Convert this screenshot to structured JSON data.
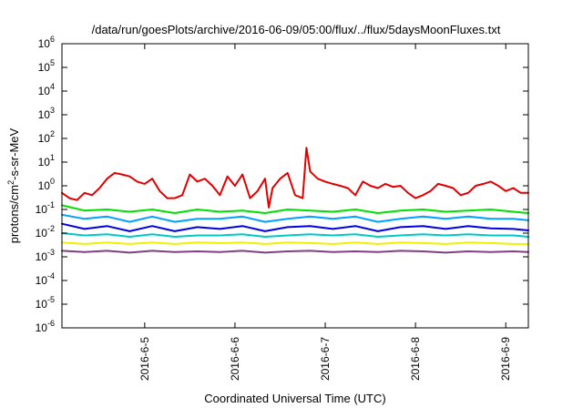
{
  "chart_data": {
    "type": "line",
    "title": "/data/run/goesPlots/archive/2016-06-09/05:00/flux/../flux/5daysMoonFluxes.txt",
    "xlabel": "Coordinated Universal Time (UTC)",
    "ylabel": "protons/cm²-s-sr-MeV",
    "ylabel_parts": {
      "pre": "protons/cm",
      "sup": "2",
      "post": "-s-sr-MeV"
    },
    "yscale": "log",
    "ylim": [
      1e-06,
      1000000.0
    ],
    "xlim": [
      "2016-06-04T02:00",
      "2016-06-09T06:00"
    ],
    "grid": false,
    "x_ticks": [
      {
        "date": "2016-06-05T00:00",
        "label": "2016-6-5"
      },
      {
        "date": "2016-06-06T00:00",
        "label": "2016-6-6"
      },
      {
        "date": "2016-06-07T00:00",
        "label": "2016-6-7"
      },
      {
        "date": "2016-06-08T00:00",
        "label": "2016-6-8"
      },
      {
        "date": "2016-06-09T00:00",
        "label": "2016-6-9"
      }
    ],
    "y_ticks": [
      {
        "value": 1e-06,
        "base": "10",
        "exp": "-6"
      },
      {
        "value": 1e-05,
        "base": "10",
        "exp": "-5"
      },
      {
        "value": 0.0001,
        "base": "10",
        "exp": "-4"
      },
      {
        "value": 0.001,
        "base": "10",
        "exp": "-3"
      },
      {
        "value": 0.01,
        "base": "10",
        "exp": "-2"
      },
      {
        "value": 0.1,
        "base": "10",
        "exp": "-1"
      },
      {
        "value": 1,
        "base": "10",
        "exp": "0"
      },
      {
        "value": 10,
        "base": "10",
        "exp": "1"
      },
      {
        "value": 100,
        "base": "10",
        "exp": "2"
      },
      {
        "value": 1000,
        "base": "10",
        "exp": "3"
      },
      {
        "value": 10000,
        "base": "10",
        "exp": "4"
      },
      {
        "value": 100000,
        "base": "10",
        "exp": "5"
      },
      {
        "value": 1000000,
        "base": "10",
        "exp": "6"
      }
    ],
    "series": [
      {
        "color": "#e00000",
        "x": [
          "2016-06-04T02:00",
          "2016-06-04T04:00",
          "2016-06-04T06:00",
          "2016-06-04T08:00",
          "2016-06-04T10:00",
          "2016-06-04T12:00",
          "2016-06-04T14:00",
          "2016-06-04T16:00",
          "2016-06-04T18:00",
          "2016-06-04T20:00",
          "2016-06-04T22:00",
          "2016-06-05T00:00",
          "2016-06-05T02:00",
          "2016-06-05T04:00",
          "2016-06-05T06:00",
          "2016-06-05T08:00",
          "2016-06-05T10:00",
          "2016-06-05T12:00",
          "2016-06-05T14:00",
          "2016-06-05T16:00",
          "2016-06-05T18:00",
          "2016-06-05T20:00",
          "2016-06-05T22:00",
          "2016-06-06T00:00",
          "2016-06-06T02:00",
          "2016-06-06T04:00",
          "2016-06-06T06:00",
          "2016-06-06T08:00",
          "2016-06-06T09:00",
          "2016-06-06T10:00",
          "2016-06-06T12:00",
          "2016-06-06T14:00",
          "2016-06-06T16:00",
          "2016-06-06T18:00",
          "2016-06-06T19:00",
          "2016-06-06T20:00",
          "2016-06-06T22:00",
          "2016-06-07T00:00",
          "2016-06-07T02:00",
          "2016-06-07T04:00",
          "2016-06-07T06:00",
          "2016-06-07T08:00",
          "2016-06-07T10:00",
          "2016-06-07T12:00",
          "2016-06-07T14:00",
          "2016-06-07T16:00",
          "2016-06-07T18:00",
          "2016-06-07T20:00",
          "2016-06-07T22:00",
          "2016-06-08T00:00",
          "2016-06-08T02:00",
          "2016-06-08T04:00",
          "2016-06-08T06:00",
          "2016-06-08T08:00",
          "2016-06-08T10:00",
          "2016-06-08T12:00",
          "2016-06-08T14:00",
          "2016-06-08T16:00",
          "2016-06-08T18:00",
          "2016-06-08T20:00",
          "2016-06-08T22:00",
          "2016-06-09T00:00",
          "2016-06-09T02:00",
          "2016-06-09T04:00",
          "2016-06-09T06:00"
        ],
        "y": [
          0.5,
          0.3,
          0.25,
          0.5,
          0.4,
          0.8,
          2.0,
          3.5,
          3.0,
          2.5,
          1.5,
          1.2,
          2.0,
          0.6,
          0.3,
          0.3,
          0.4,
          3.0,
          1.5,
          2.0,
          1.0,
          0.4,
          2.5,
          1.0,
          3.0,
          0.3,
          0.6,
          2.0,
          0.12,
          0.8,
          2.0,
          3.5,
          0.4,
          0.3,
          40.0,
          4.0,
          2.0,
          1.5,
          1.2,
          1.0,
          0.8,
          0.4,
          1.5,
          1.0,
          0.8,
          1.2,
          0.9,
          1.0,
          0.5,
          0.3,
          0.4,
          0.6,
          1.2,
          1.0,
          0.8,
          0.4,
          0.5,
          1.0,
          1.2,
          1.5,
          1.0,
          0.6,
          0.8,
          0.5,
          0.5
        ]
      },
      {
        "color": "#00e000",
        "x": [
          "2016-06-04T02:00",
          "2016-06-04T08:00",
          "2016-06-04T14:00",
          "2016-06-04T20:00",
          "2016-06-05T02:00",
          "2016-06-05T08:00",
          "2016-06-05T14:00",
          "2016-06-05T20:00",
          "2016-06-06T02:00",
          "2016-06-06T08:00",
          "2016-06-06T14:00",
          "2016-06-06T20:00",
          "2016-06-07T02:00",
          "2016-06-07T08:00",
          "2016-06-07T14:00",
          "2016-06-07T20:00",
          "2016-06-08T02:00",
          "2016-06-08T08:00",
          "2016-06-08T14:00",
          "2016-06-08T20:00",
          "2016-06-09T02:00",
          "2016-06-09T06:00"
        ],
        "y": [
          0.15,
          0.09,
          0.1,
          0.08,
          0.1,
          0.07,
          0.1,
          0.08,
          0.09,
          0.07,
          0.1,
          0.09,
          0.08,
          0.1,
          0.07,
          0.09,
          0.1,
          0.08,
          0.09,
          0.1,
          0.08,
          0.07
        ]
      },
      {
        "color": "#00a0ff",
        "x": [
          "2016-06-04T02:00",
          "2016-06-04T08:00",
          "2016-06-04T14:00",
          "2016-06-04T20:00",
          "2016-06-05T02:00",
          "2016-06-05T08:00",
          "2016-06-05T14:00",
          "2016-06-05T20:00",
          "2016-06-06T02:00",
          "2016-06-06T08:00",
          "2016-06-06T14:00",
          "2016-06-06T20:00",
          "2016-06-07T02:00",
          "2016-06-07T08:00",
          "2016-06-07T14:00",
          "2016-06-07T20:00",
          "2016-06-08T02:00",
          "2016-06-08T08:00",
          "2016-06-08T14:00",
          "2016-06-08T20:00",
          "2016-06-09T02:00",
          "2016-06-09T06:00"
        ],
        "y": [
          0.06,
          0.04,
          0.05,
          0.03,
          0.05,
          0.03,
          0.04,
          0.04,
          0.05,
          0.03,
          0.04,
          0.05,
          0.04,
          0.05,
          0.03,
          0.04,
          0.05,
          0.04,
          0.05,
          0.04,
          0.04,
          0.035
        ]
      },
      {
        "color": "#0000e0",
        "x": [
          "2016-06-04T02:00",
          "2016-06-04T08:00",
          "2016-06-04T14:00",
          "2016-06-04T20:00",
          "2016-06-05T02:00",
          "2016-06-05T08:00",
          "2016-06-05T14:00",
          "2016-06-05T20:00",
          "2016-06-06T02:00",
          "2016-06-06T08:00",
          "2016-06-06T14:00",
          "2016-06-06T20:00",
          "2016-06-07T02:00",
          "2016-06-07T08:00",
          "2016-06-07T14:00",
          "2016-06-07T20:00",
          "2016-06-08T02:00",
          "2016-06-08T08:00",
          "2016-06-08T14:00",
          "2016-06-08T20:00",
          "2016-06-09T02:00",
          "2016-06-09T06:00"
        ],
        "y": [
          0.025,
          0.015,
          0.02,
          0.012,
          0.02,
          0.012,
          0.018,
          0.015,
          0.02,
          0.012,
          0.018,
          0.02,
          0.015,
          0.02,
          0.012,
          0.018,
          0.02,
          0.015,
          0.02,
          0.016,
          0.015,
          0.013
        ]
      },
      {
        "color": "#00c8c8",
        "x": [
          "2016-06-04T02:00",
          "2016-06-04T08:00",
          "2016-06-04T14:00",
          "2016-06-04T20:00",
          "2016-06-05T02:00",
          "2016-06-05T08:00",
          "2016-06-05T14:00",
          "2016-06-05T20:00",
          "2016-06-06T02:00",
          "2016-06-06T08:00",
          "2016-06-06T14:00",
          "2016-06-06T20:00",
          "2016-06-07T02:00",
          "2016-06-07T08:00",
          "2016-06-07T14:00",
          "2016-06-07T20:00",
          "2016-06-08T02:00",
          "2016-06-08T08:00",
          "2016-06-08T14:00",
          "2016-06-08T20:00",
          "2016-06-09T02:00",
          "2016-06-09T06:00"
        ],
        "y": [
          0.01,
          0.008,
          0.009,
          0.007,
          0.009,
          0.007,
          0.008,
          0.008,
          0.009,
          0.007,
          0.008,
          0.009,
          0.008,
          0.009,
          0.007,
          0.008,
          0.009,
          0.008,
          0.009,
          0.008,
          0.008,
          0.007
        ]
      },
      {
        "color": "#f0f000",
        "x": [
          "2016-06-04T02:00",
          "2016-06-04T08:00",
          "2016-06-04T14:00",
          "2016-06-04T20:00",
          "2016-06-05T02:00",
          "2016-06-05T08:00",
          "2016-06-05T14:00",
          "2016-06-05T20:00",
          "2016-06-06T02:00",
          "2016-06-06T08:00",
          "2016-06-06T14:00",
          "2016-06-06T20:00",
          "2016-06-07T02:00",
          "2016-06-07T08:00",
          "2016-06-07T14:00",
          "2016-06-07T20:00",
          "2016-06-08T02:00",
          "2016-06-08T08:00",
          "2016-06-08T14:00",
          "2016-06-08T20:00",
          "2016-06-09T02:00",
          "2016-06-09T06:00"
        ],
        "y": [
          0.004,
          0.0035,
          0.004,
          0.0035,
          0.004,
          0.0035,
          0.004,
          0.0038,
          0.004,
          0.0035,
          0.004,
          0.0038,
          0.0035,
          0.004,
          0.0035,
          0.004,
          0.0038,
          0.0035,
          0.004,
          0.0038,
          0.0035,
          0.0035
        ]
      },
      {
        "color": "#804080",
        "x": [
          "2016-06-04T02:00",
          "2016-06-04T08:00",
          "2016-06-04T14:00",
          "2016-06-04T20:00",
          "2016-06-05T02:00",
          "2016-06-05T08:00",
          "2016-06-05T14:00",
          "2016-06-05T20:00",
          "2016-06-06T02:00",
          "2016-06-06T08:00",
          "2016-06-06T14:00",
          "2016-06-06T20:00",
          "2016-06-07T02:00",
          "2016-06-07T08:00",
          "2016-06-07T14:00",
          "2016-06-07T20:00",
          "2016-06-08T02:00",
          "2016-06-08T08:00",
          "2016-06-08T14:00",
          "2016-06-08T20:00",
          "2016-06-09T02:00",
          "2016-06-09T06:00"
        ],
        "y": [
          0.0018,
          0.0016,
          0.0018,
          0.0015,
          0.0018,
          0.0016,
          0.0017,
          0.0016,
          0.0018,
          0.0015,
          0.0017,
          0.0018,
          0.0016,
          0.0017,
          0.0016,
          0.0018,
          0.0017,
          0.0015,
          0.0017,
          0.0016,
          0.0017,
          0.0016
        ]
      }
    ]
  }
}
